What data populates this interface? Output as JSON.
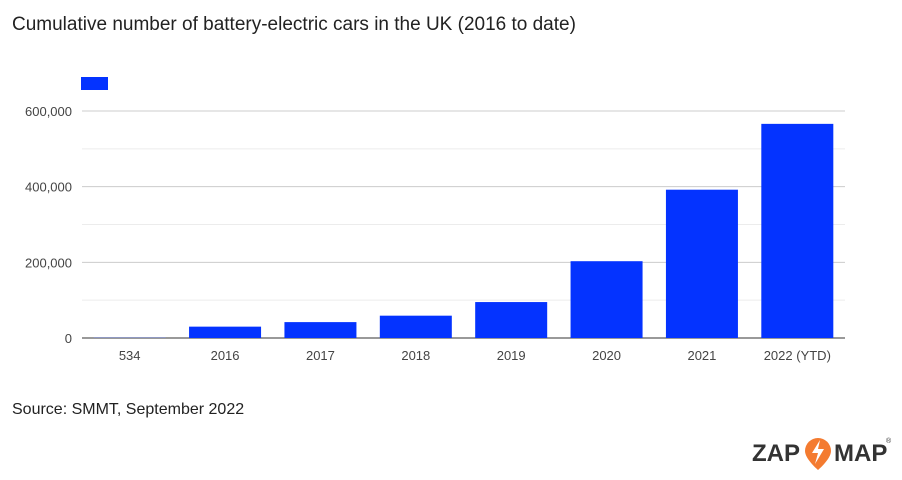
{
  "chart_data": {
    "type": "bar",
    "title": "Cumulative number of battery-electric cars in the UK (2016 to date)",
    "categories": [
      "534",
      "2016",
      "2017",
      "2018",
      "2019",
      "2020",
      "2021",
      "2022 (YTD)"
    ],
    "values": [
      534,
      30000,
      42000,
      59000,
      95000,
      203000,
      392000,
      566000
    ],
    "xlabel": "",
    "ylabel": "",
    "ylim": [
      0,
      600000
    ],
    "yticks": [
      "0",
      "200,000",
      "400,000",
      "600,000"
    ],
    "ytick_values": [
      0,
      200000,
      400000,
      600000
    ],
    "minor_gridlines": [
      100000,
      300000,
      500000
    ],
    "grid": true,
    "legend": "top-left",
    "bar_color": "#0433ff"
  },
  "source": "Source: SMMT, September 2022",
  "logo": {
    "text_left": "ZAP",
    "text_right": "MAP",
    "accent": "#f47b30"
  }
}
